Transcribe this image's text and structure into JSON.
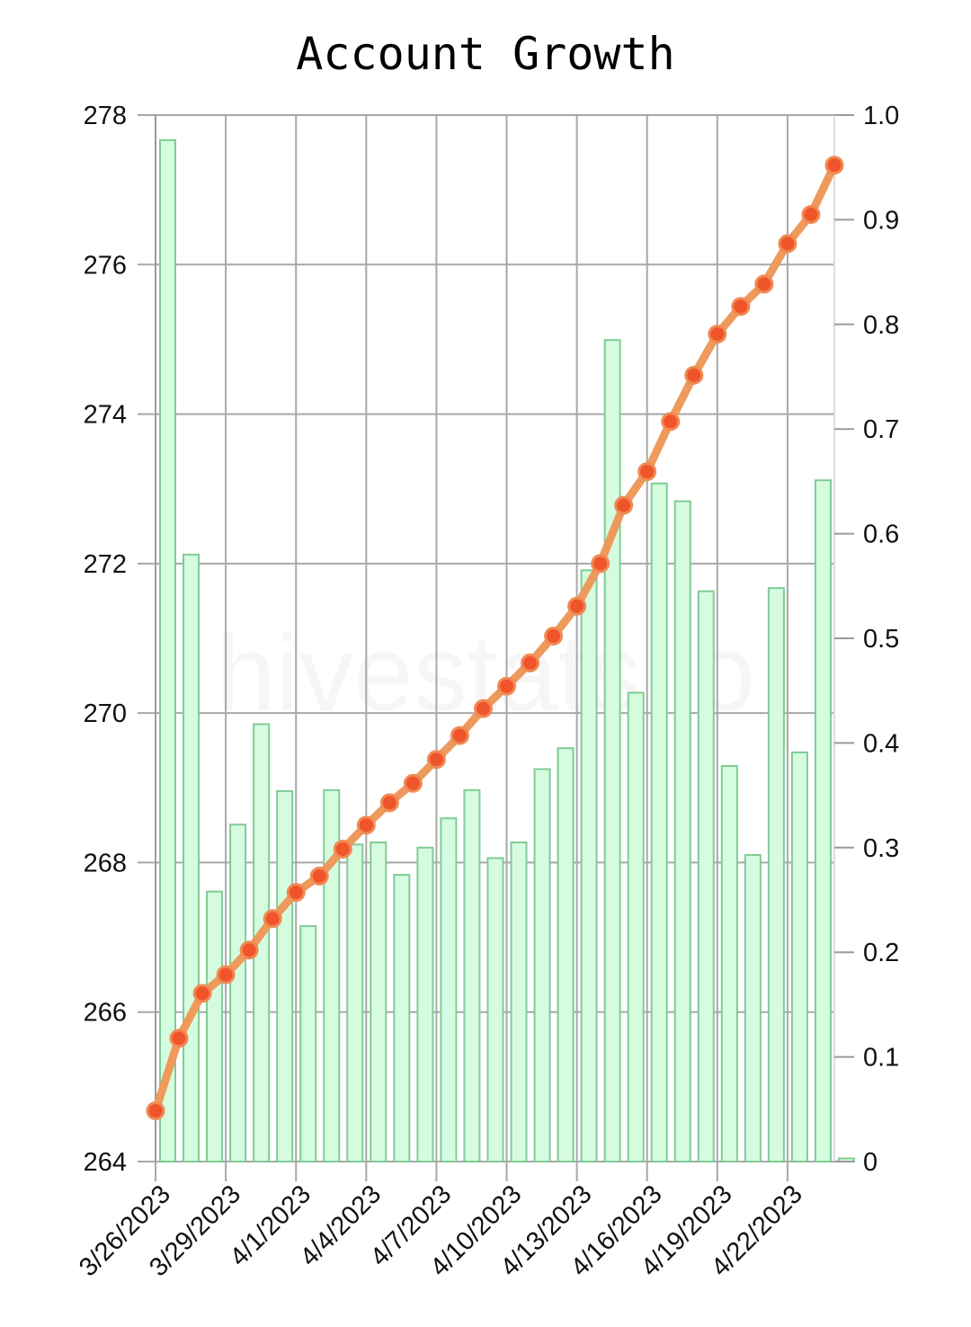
{
  "chart_data": {
    "type": "bar+line",
    "title": "Account Growth",
    "watermark": "hivestats.io",
    "x_tick_labels": [
      "3/26/2023",
      "3/29/2023",
      "4/1/2023",
      "4/4/2023",
      "4/7/2023",
      "4/10/2023",
      "4/13/2023",
      "4/16/2023",
      "4/19/2023",
      "4/22/2023"
    ],
    "y_left_ticks": [
      264,
      266,
      268,
      270,
      272,
      274,
      276,
      278
    ],
    "y_right_ticks": [
      "0",
      "0.1",
      "0.2",
      "0.3",
      "0.4",
      "0.5",
      "0.6",
      "0.7",
      "0.8",
      "0.9",
      "1.0"
    ],
    "y_left_range": [
      264,
      278
    ],
    "y_right_range": [
      0,
      1.0
    ],
    "grid": true,
    "dates": [
      "3/26/2023",
      "3/27/2023",
      "3/28/2023",
      "3/29/2023",
      "3/30/2023",
      "3/31/2023",
      "4/1/2023",
      "4/2/2023",
      "4/3/2023",
      "4/4/2023",
      "4/5/2023",
      "4/6/2023",
      "4/7/2023",
      "4/8/2023",
      "4/9/2023",
      "4/10/2023",
      "4/11/2023",
      "4/12/2023",
      "4/13/2023",
      "4/14/2023",
      "4/15/2023",
      "4/16/2023",
      "4/17/2023",
      "4/18/2023",
      "4/19/2023",
      "4/20/2023",
      "4/21/2023",
      "4/22/2023",
      "4/23/2023",
      "4/24/2023"
    ],
    "series": [
      {
        "type": "line",
        "axis": "left",
        "color": "#ee9a5c",
        "marker_color": "#f0542a",
        "values": [
          264.68,
          265.65,
          266.25,
          266.5,
          266.83,
          267.25,
          267.6,
          267.82,
          268.18,
          268.5,
          268.8,
          269.06,
          269.38,
          269.7,
          270.06,
          270.36,
          270.67,
          271.03,
          271.43,
          272.0,
          272.78,
          273.23,
          273.9,
          274.52,
          275.07,
          275.44,
          275.74,
          276.28,
          276.67,
          277.33
        ]
      },
      {
        "type": "bar",
        "axis": "right",
        "color": "#d6fce0",
        "border_color": "#7fcc95",
        "values": [
          0.976,
          0.58,
          0.258,
          0.322,
          0.418,
          0.354,
          0.225,
          0.355,
          0.303,
          0.305,
          0.274,
          0.3,
          0.328,
          0.355,
          0.29,
          0.305,
          0.375,
          0.395,
          0.565,
          0.785,
          0.448,
          0.648,
          0.631,
          0.545,
          0.378,
          0.293,
          0.548,
          0.391,
          0.651,
          0.003
        ]
      }
    ]
  }
}
